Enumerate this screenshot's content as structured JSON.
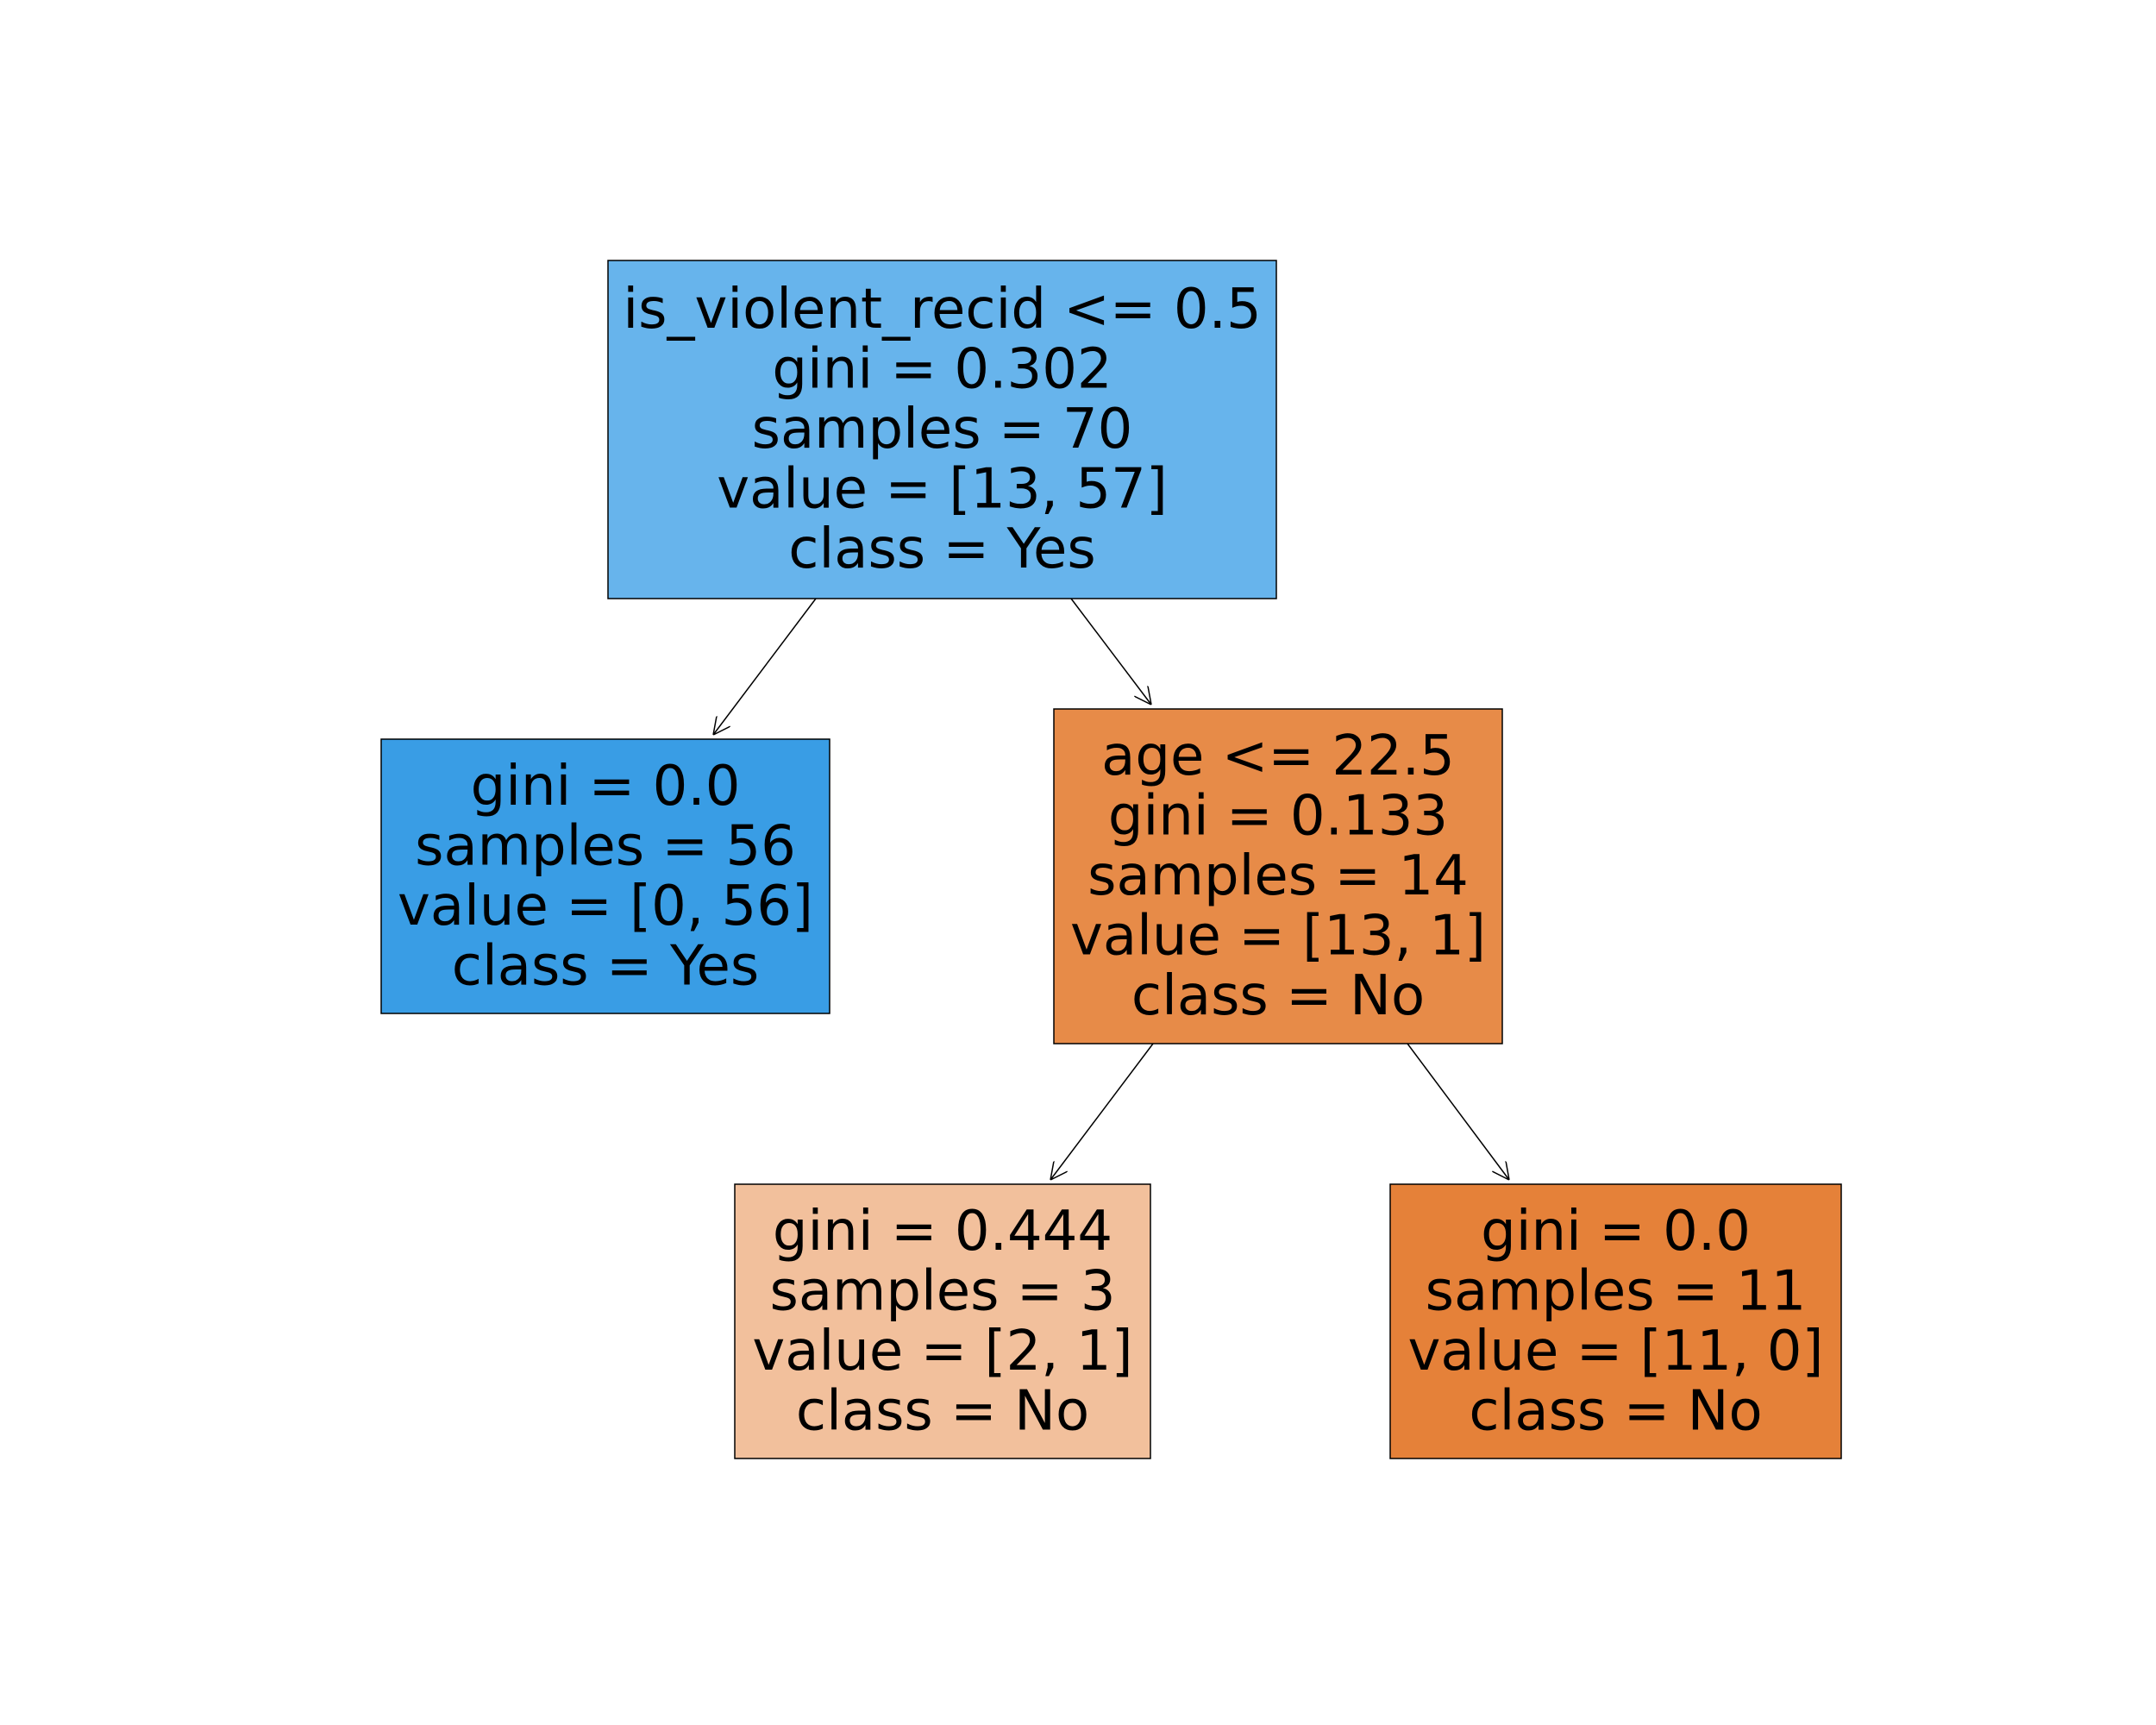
{
  "tree": {
    "nodes": [
      {
        "id": "n0",
        "lines": [
          "is_violent_recid <= 0.5",
          "gini = 0.302",
          "samples = 70",
          "value = [13, 57]",
          "class = Yes"
        ],
        "fill": "#67b4ec"
      },
      {
        "id": "n1",
        "lines": [
          "gini = 0.0",
          "samples = 56",
          "value = [0, 56]",
          "class = Yes"
        ],
        "fill": "#399de5"
      },
      {
        "id": "n2",
        "lines": [
          "age <= 22.5",
          "gini = 0.133",
          "samples = 14",
          "value = [13, 1]",
          "class = No"
        ],
        "fill": "#e78b48"
      },
      {
        "id": "n3",
        "lines": [
          "gini = 0.444",
          "samples = 3",
          "value = [2, 1]",
          "class = No"
        ],
        "fill": "#f2c09c"
      },
      {
        "id": "n4",
        "lines": [
          "gini = 0.0",
          "samples = 11",
          "value = [11, 0]",
          "class = No"
        ],
        "fill": "#e58139"
      }
    ],
    "edges": [
      {
        "from": "n0",
        "to": "n1"
      },
      {
        "from": "n0",
        "to": "n2"
      },
      {
        "from": "n2",
        "to": "n3"
      },
      {
        "from": "n2",
        "to": "n4"
      }
    ]
  }
}
